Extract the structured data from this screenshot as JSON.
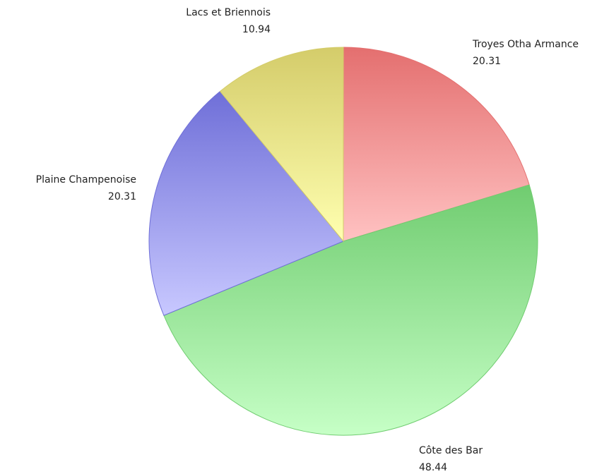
{
  "chart_data": {
    "type": "pie",
    "slices": [
      {
        "label": "Troyes Otha Armance",
        "value": 20.31,
        "value_label": "20.31",
        "color": "#e46f6f",
        "color_light": "#ffc2c2"
      },
      {
        "label": "Côte des Bar",
        "value": 48.44,
        "value_label": "48.44",
        "color": "#70cc70",
        "color_light": "#c6ffc6"
      },
      {
        "label": "Plaine Champenoise",
        "value": 20.31,
        "value_label": "20.31",
        "color": "#6f6fd8",
        "color_light": "#c8c8ff"
      },
      {
        "label": "Lacs et Briennois",
        "value": 10.94,
        "value_label": "10.94",
        "color": "#d4cc6a",
        "color_light": "#ffffb0"
      }
    ],
    "start_angle": "12 o'clock",
    "direction": "clockwise",
    "legend": "none"
  }
}
